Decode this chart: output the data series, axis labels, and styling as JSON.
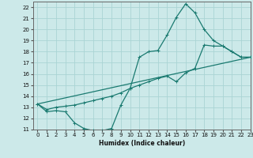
{
  "xlabel": "Humidex (Indice chaleur)",
  "xlim": [
    -0.5,
    23
  ],
  "ylim": [
    11,
    22.5
  ],
  "xticks": [
    0,
    1,
    2,
    3,
    4,
    5,
    6,
    7,
    8,
    9,
    10,
    11,
    12,
    13,
    14,
    15,
    16,
    17,
    18,
    19,
    20,
    21,
    22,
    23
  ],
  "yticks": [
    11,
    12,
    13,
    14,
    15,
    16,
    17,
    18,
    19,
    20,
    21,
    22
  ],
  "bg_color": "#cce9e9",
  "line_color": "#1a7a70",
  "grid_color": "#aad4d4",
  "line1_x": [
    0,
    1,
    2,
    3,
    4,
    5,
    6,
    7,
    8,
    9,
    10,
    11,
    12,
    13,
    14,
    15,
    16,
    17,
    18,
    19,
    20,
    21,
    22,
    23
  ],
  "line1_y": [
    13.3,
    12.6,
    12.7,
    12.6,
    11.6,
    11.1,
    10.9,
    10.9,
    11.1,
    13.2,
    14.7,
    17.5,
    18.0,
    18.1,
    19.5,
    21.1,
    22.3,
    21.5,
    20.0,
    19.0,
    18.5,
    18.0,
    17.5,
    17.5
  ],
  "line2_x": [
    0,
    1,
    2,
    3,
    4,
    5,
    6,
    7,
    8,
    9,
    10,
    11,
    12,
    13,
    14,
    15,
    16,
    17,
    18,
    19,
    20,
    21,
    22,
    23
  ],
  "line2_y": [
    13.3,
    12.8,
    13.0,
    13.1,
    13.2,
    13.4,
    13.6,
    13.8,
    14.0,
    14.3,
    14.7,
    15.0,
    15.3,
    15.6,
    15.8,
    15.3,
    16.1,
    16.5,
    18.6,
    18.5,
    18.5,
    18.0,
    17.5,
    17.5
  ],
  "line3_x": [
    0,
    23
  ],
  "line3_y": [
    13.3,
    17.5
  ]
}
